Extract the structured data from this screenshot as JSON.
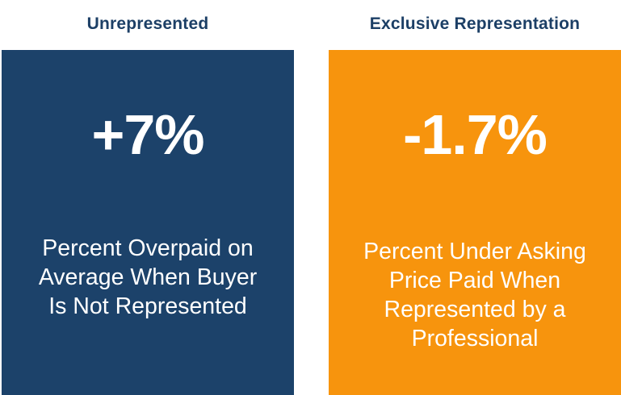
{
  "left": {
    "heading": "Unrepresented",
    "value": "+7%",
    "description": "Percent Overpaid on\nAverage When Buyer\nIs Not Represented",
    "color": "#1c426a"
  },
  "right": {
    "heading": "Exclusive Representation",
    "value": "-1.7%",
    "description": "Percent Under Asking\nPrice Paid When\nRepresented by a\nProfessional",
    "color": "#f7940d"
  },
  "heading_color": "#1c3f66"
}
